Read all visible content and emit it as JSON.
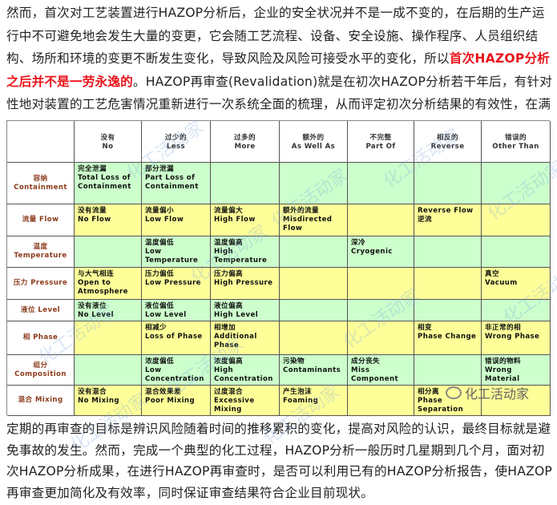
{
  "intro": {
    "part1": "然而，首次对工艺装置进行HAZOP分析后，企业的安全状况并不是一成不变的，在后期的生产运行中不可避免地会发生大量的变更，它会随工艺流程、设备、安全设施、操作程序、人员组织结构、场所和环境的变更不断发生变化，导致风险及风险可接受水平的变化，所以",
    "highlight": "首次HAZOP分析之后并不是一劳永逸的",
    "part2": "。HAZOP再审查(Revalidation)就是在初次HAZOP分析若干年后，有针对性地对装置的工艺危害情况重新进行一次系统全面的梳理，从而评定初次分析结果的有效性，在满足规范要求的同时提高企业的工艺过程安全管理水平。"
  },
  "table": {
    "headers": [
      "",
      "没有\nNo",
      "过少的\nLess",
      "过多的\nMore",
      "额外的\nAs Well As",
      "不完整\nPart Of",
      "相反的\nReverse",
      "错误的\nOther Than"
    ],
    "rows": [
      {
        "label": "容纳\nContainment",
        "color": "green",
        "cells": [
          "完全泄漏\nTotal Loss of Containment",
          "部分泄漏\nPart Loss of Containment",
          "",
          "",
          "",
          "",
          ""
        ]
      },
      {
        "label": "流量 Flow",
        "color": "yellow",
        "cells": [
          "没有流量\nNo Flow",
          "流量偏小\nLow Flow",
          "流量偏大\nHigh Flow",
          "额外的流量\nMisdirected Flow",
          "",
          "Reverse Flow\n逆流",
          ""
        ]
      },
      {
        "label": "温度\nTemperature",
        "color": "green",
        "cells": [
          "",
          "温度偏低\nLow Temperature",
          "温度偏高\nHigh Temperature",
          "",
          "深冷\nCryogenic",
          "",
          ""
        ]
      },
      {
        "label": "压力 Pressure",
        "color": "yellow",
        "cells": [
          "与大气相连\nOpen to Atmosphere",
          "压力偏低\nLow Pressure",
          "压力偏高\nHigh Pressure",
          "",
          "",
          "",
          "真空\nVacuum"
        ]
      },
      {
        "label": "液位 Level",
        "color": "green",
        "cells": [
          "没有液位\nNo Level",
          "液位偏低\nLow Level",
          "液位偏高\nHigh Level",
          "",
          "",
          "",
          ""
        ]
      },
      {
        "label": "相 Phase",
        "color": "yellow",
        "cells": [
          "",
          "相减少\nLoss of Phase",
          "相增加\nAdditional Phase",
          "",
          "",
          "相变\nPhase Change",
          "非正常的相\nWrong Phase"
        ]
      },
      {
        "label": "组分\nComposition",
        "color": "green",
        "cells": [
          "",
          "浓度偏低\nLow Concentration",
          "浓度偏高\nHigh Concentration",
          "污染物\nContaminants",
          "成分丧失\nMiss Component",
          "",
          "错误的物料\nWrong Material"
        ]
      },
      {
        "label": "混合 Mixing",
        "color": "yellow",
        "cells": [
          "没有混合\nNo Mixing",
          "混合效果差\nPoor Mixing",
          "过度混合\nExcessive Mixing",
          "产生泡沫\nFoaming",
          "",
          "相分离\nPhase Separation",
          ""
        ]
      }
    ],
    "colors": {
      "green": "#ccffcc",
      "yellow": "#ffff99",
      "label_text": "#8b3a1a"
    },
    "watermark": "化工活动家",
    "logo": {
      "icon": "wechat-icon",
      "text": "化工活动家"
    }
  },
  "outro": "定期的再审查的目标是辨识风险随着时间的推移累积的变化，提高对风险的认识，最终目标就是避免事故的发生。然而，完成一个典型的化工过程，HAZOP分析一般历时几星期到几个月，面对初次HAZOP分析成果，在进行HAZOP再审查时，是否可以利用已有的HAZOP分析报告，使HAZOP再审查更加简化及有效率，同时保证审查结果符合企业目前现状。"
}
